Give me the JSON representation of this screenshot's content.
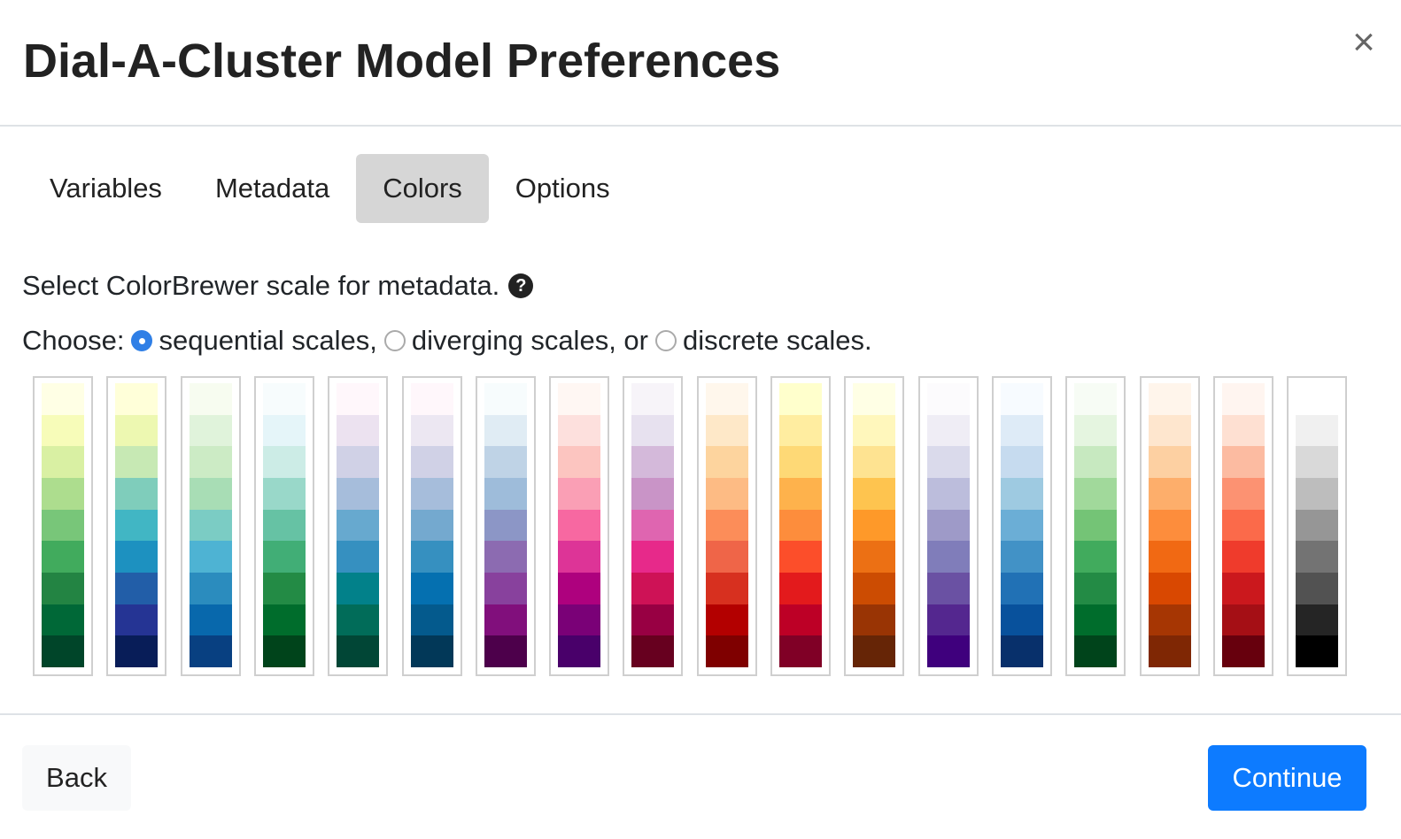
{
  "modal": {
    "title": "Dial-A-Cluster Model Preferences",
    "close_label": "×"
  },
  "tabs": [
    {
      "label": "Variables",
      "active": false
    },
    {
      "label": "Metadata",
      "active": false
    },
    {
      "label": "Colors",
      "active": true
    },
    {
      "label": "Options",
      "active": false
    }
  ],
  "colors_panel": {
    "hint_text": "Select ColorBrewer scale for metadata.",
    "help_icon": "question-circle-icon",
    "choose_label": "Choose:",
    "options": [
      {
        "label": "sequential scales,",
        "checked": true
      },
      {
        "label": "diverging scales, or",
        "checked": false
      },
      {
        "label": "discrete scales.",
        "checked": false
      }
    ]
  },
  "palettes": [
    {
      "name": "YlGn",
      "colors": [
        "#ffffe5",
        "#f7fcb9",
        "#d9f0a3",
        "#addd8e",
        "#78c679",
        "#41ab5d",
        "#238443",
        "#006837",
        "#004529"
      ]
    },
    {
      "name": "YlGnBu",
      "colors": [
        "#ffffd9",
        "#edf8b1",
        "#c7e9b4",
        "#7fcdbb",
        "#41b6c4",
        "#1d91c0",
        "#225ea8",
        "#253494",
        "#081d58"
      ]
    },
    {
      "name": "GnBu",
      "colors": [
        "#f7fcf0",
        "#e0f3db",
        "#ccebc5",
        "#a8ddb5",
        "#7bccc4",
        "#4eb3d3",
        "#2b8cbe",
        "#0868ac",
        "#084081"
      ]
    },
    {
      "name": "BuGn",
      "colors": [
        "#f7fcfd",
        "#e5f5f9",
        "#ccece6",
        "#99d8c9",
        "#66c2a4",
        "#41ae76",
        "#238b45",
        "#006d2c",
        "#00441b"
      ]
    },
    {
      "name": "PuBuGn",
      "colors": [
        "#fff7fb",
        "#ece2f0",
        "#d0d1e6",
        "#a6bddb",
        "#67a9cf",
        "#3690c0",
        "#02818a",
        "#016c59",
        "#014636"
      ]
    },
    {
      "name": "PuBu",
      "colors": [
        "#fff7fb",
        "#ece7f2",
        "#d0d1e6",
        "#a6bddb",
        "#74a9cf",
        "#3690c0",
        "#0570b0",
        "#045a8d",
        "#023858"
      ]
    },
    {
      "name": "BuPu",
      "colors": [
        "#f7fcfd",
        "#e0ecf4",
        "#bfd3e6",
        "#9ebcda",
        "#8c96c6",
        "#8c6bb1",
        "#88419d",
        "#810f7c",
        "#4d004b"
      ]
    },
    {
      "name": "RdPu",
      "colors": [
        "#fff7f3",
        "#fde0dd",
        "#fcc5c0",
        "#fa9fb5",
        "#f768a1",
        "#dd3497",
        "#ae017e",
        "#7a0177",
        "#49006a"
      ]
    },
    {
      "name": "PuRd",
      "colors": [
        "#f7f4f9",
        "#e7e1ef",
        "#d4b9da",
        "#c994c7",
        "#df65b0",
        "#e7298a",
        "#ce1256",
        "#980043",
        "#67001f"
      ]
    },
    {
      "name": "OrRd",
      "colors": [
        "#fff7ec",
        "#fee8c8",
        "#fdd49e",
        "#fdbb84",
        "#fc8d59",
        "#ef6548",
        "#d7301f",
        "#b30000",
        "#7f0000"
      ]
    },
    {
      "name": "YlOrRd",
      "colors": [
        "#ffffcc",
        "#ffeda0",
        "#fed976",
        "#feb24c",
        "#fd8d3c",
        "#fc4e2a",
        "#e31a1c",
        "#bd0026",
        "#800026"
      ]
    },
    {
      "name": "YlOrBr",
      "colors": [
        "#ffffe5",
        "#fff7bc",
        "#fee391",
        "#fec44f",
        "#fe9929",
        "#ec7014",
        "#cc4c02",
        "#993404",
        "#662506"
      ]
    },
    {
      "name": "Purples",
      "colors": [
        "#fcfbfd",
        "#efedf5",
        "#dadaeb",
        "#bcbddc",
        "#9e9ac8",
        "#807dba",
        "#6a51a3",
        "#54278f",
        "#3f007d"
      ]
    },
    {
      "name": "Blues",
      "colors": [
        "#f7fbff",
        "#deebf7",
        "#c6dbef",
        "#9ecae1",
        "#6baed6",
        "#4292c6",
        "#2171b5",
        "#08519c",
        "#08306b"
      ]
    },
    {
      "name": "Greens",
      "colors": [
        "#f7fcf5",
        "#e5f5e0",
        "#c7e9c0",
        "#a1d99b",
        "#74c476",
        "#41ab5d",
        "#238b45",
        "#006d2c",
        "#00441b"
      ]
    },
    {
      "name": "Oranges",
      "colors": [
        "#fff5eb",
        "#fee6ce",
        "#fdd0a2",
        "#fdae6b",
        "#fd8d3c",
        "#f16913",
        "#d94801",
        "#a63603",
        "#7f2704"
      ]
    },
    {
      "name": "Reds",
      "colors": [
        "#fff5f0",
        "#fee0d2",
        "#fcbba1",
        "#fc9272",
        "#fb6a4a",
        "#ef3b2c",
        "#cb181d",
        "#a50f15",
        "#67000d"
      ]
    },
    {
      "name": "Greys",
      "colors": [
        "#ffffff",
        "#f0f0f0",
        "#d9d9d9",
        "#bdbdbd",
        "#969696",
        "#737373",
        "#525252",
        "#252525",
        "#000000"
      ]
    }
  ],
  "footer": {
    "back_label": "Back",
    "continue_label": "Continue"
  }
}
